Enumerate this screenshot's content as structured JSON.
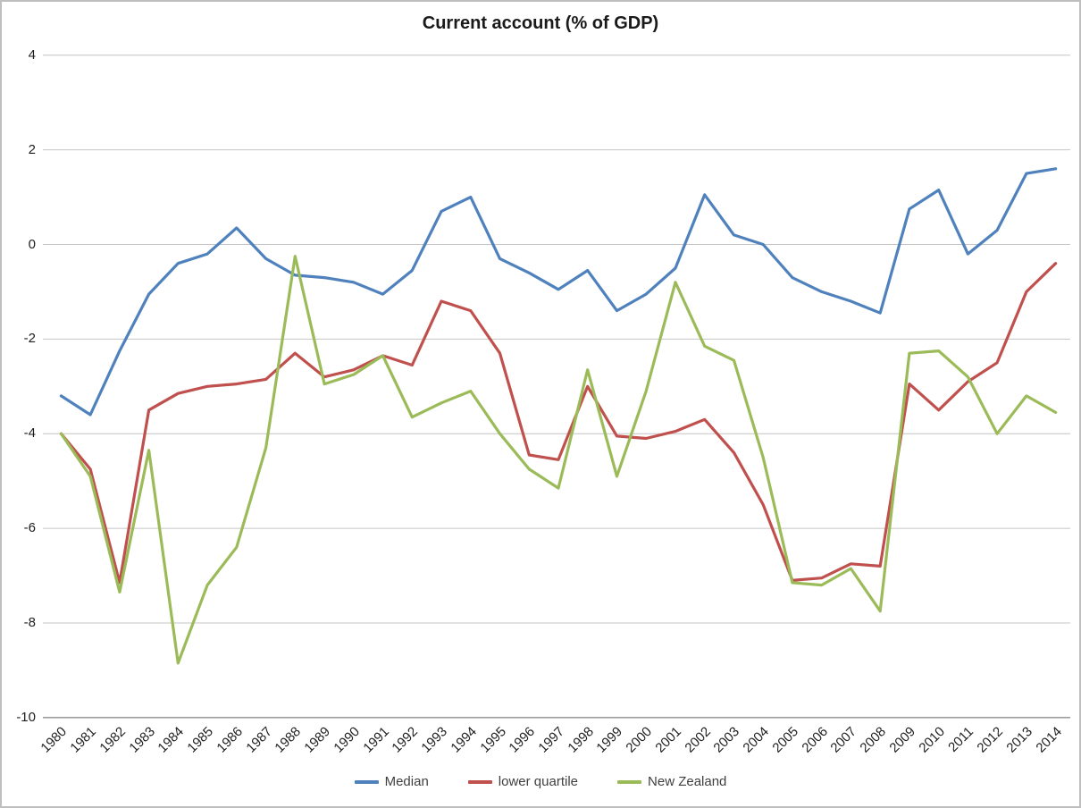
{
  "title": "Current account (% of GDP)",
  "chart_data": {
    "type": "line",
    "title": "Current account (% of GDP)",
    "xlabel": "",
    "ylabel": "",
    "x": [
      1980,
      1981,
      1982,
      1983,
      1984,
      1985,
      1986,
      1987,
      1988,
      1989,
      1990,
      1991,
      1992,
      1993,
      1994,
      1995,
      1996,
      1997,
      1998,
      1999,
      2000,
      2001,
      2002,
      2003,
      2004,
      2005,
      2006,
      2007,
      2008,
      2009,
      2010,
      2011,
      2012,
      2013,
      2014
    ],
    "series": [
      {
        "name": "Median",
        "color": "#4F81BD",
        "values": [
          -3.2,
          -3.6,
          -2.25,
          -1.05,
          -0.4,
          -0.2,
          0.35,
          -0.3,
          -0.65,
          -0.7,
          -0.8,
          -1.05,
          -0.55,
          0.7,
          1.0,
          -0.3,
          -0.6,
          -0.95,
          -0.55,
          -1.4,
          -1.05,
          -0.5,
          1.05,
          0.2,
          0.0,
          -0.7,
          -1.0,
          -1.2,
          -1.45,
          0.75,
          1.15,
          -0.2,
          0.3,
          1.5,
          1.6
        ]
      },
      {
        "name": "lower quartile",
        "color": "#C0504D",
        "values": [
          -4.0,
          -4.75,
          -7.15,
          -3.5,
          -3.15,
          -3.0,
          -2.95,
          -2.85,
          -2.3,
          -2.8,
          -2.65,
          -2.35,
          -2.55,
          -1.2,
          -1.4,
          -2.3,
          -4.45,
          -4.55,
          -3.0,
          -4.05,
          -4.1,
          -3.95,
          -3.7,
          -4.4,
          -5.5,
          -7.1,
          -7.05,
          -6.75,
          -6.8,
          -2.95,
          -3.5,
          -2.9,
          -2.5,
          -1.0,
          -0.4
        ]
      },
      {
        "name": "New Zealand",
        "color": "#9BBB59",
        "values": [
          -4.0,
          -4.9,
          -7.35,
          -4.35,
          -8.85,
          -7.2,
          -6.4,
          -4.3,
          -0.25,
          -2.95,
          -2.75,
          -2.35,
          -3.65,
          -3.35,
          -3.1,
          -4.0,
          -4.75,
          -5.15,
          -2.65,
          -4.9,
          -3.1,
          -0.8,
          -2.15,
          -2.45,
          -4.5,
          -7.15,
          -7.2,
          -6.85,
          -7.75,
          -2.3,
          -2.25,
          -2.8,
          -4.0,
          -3.2,
          -3.55
        ]
      }
    ],
    "ylim": [
      -10,
      4
    ],
    "yticks": [
      4,
      2,
      0,
      -2,
      -4,
      -6,
      -8,
      -10
    ],
    "grid": true,
    "gridline_color": "#c4c4c4",
    "axis_line_color": "#8e8e8e",
    "legend_position": "bottom"
  }
}
